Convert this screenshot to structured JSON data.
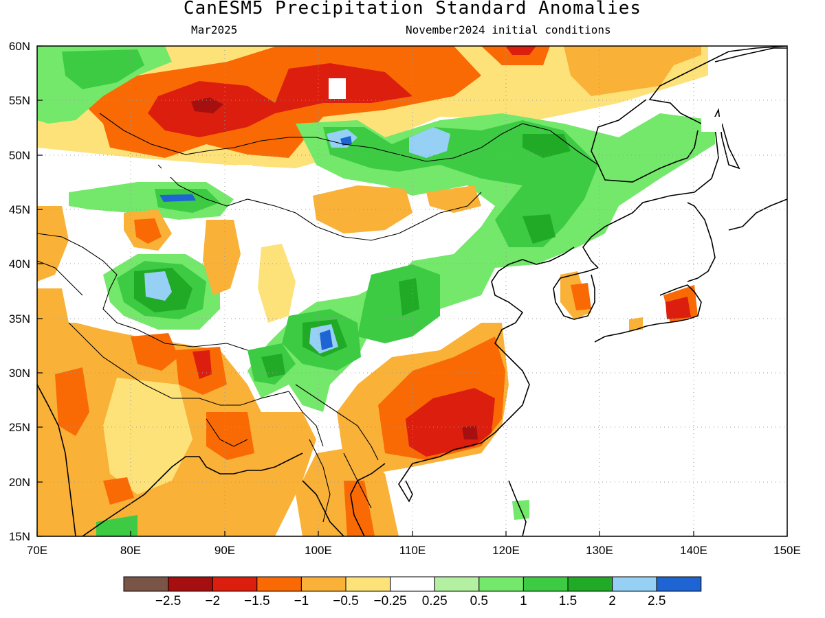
{
  "title": "CanESM5 Precipitation Standard Anomalies",
  "subtitle_left": "Mar2025",
  "subtitle_right": "November2024 initial conditions",
  "lon_labels": [
    "70E",
    "80E",
    "90E",
    "100E",
    "110E",
    "120E",
    "130E",
    "140E",
    "150E"
  ],
  "lat_labels": [
    "60N",
    "55N",
    "50N",
    "45N",
    "40N",
    "35N",
    "30N",
    "25N",
    "20N",
    "15N"
  ],
  "colorbar": {
    "labels": [
      "-2.5",
      "-2",
      "-1.5",
      "-1",
      "-0.5",
      "-0.25",
      "0.25",
      "0.5",
      "1",
      "1.5",
      "2",
      "2.5"
    ],
    "colors": [
      "#7a5547",
      "#a50f0f",
      "#dc1e0e",
      "#f96a05",
      "#f9b138",
      "#fde27a",
      "#ffffff",
      "#b4f0a2",
      "#73e86b",
      "#3ccb43",
      "#20aa26",
      "#96d0f5",
      "#1e64d2"
    ]
  },
  "colors": {
    "d25": "#a50f0f",
    "d2": "#dc1e0e",
    "d15": "#f96a05",
    "d1": "#f9b138",
    "d05": "#fde27a",
    "w05": "#b4f0a2",
    "w1": "#73e86b",
    "w15": "#3ccb43",
    "w2": "#20aa26",
    "w25": "#96d0f5",
    "w3": "#1e64d2"
  }
}
